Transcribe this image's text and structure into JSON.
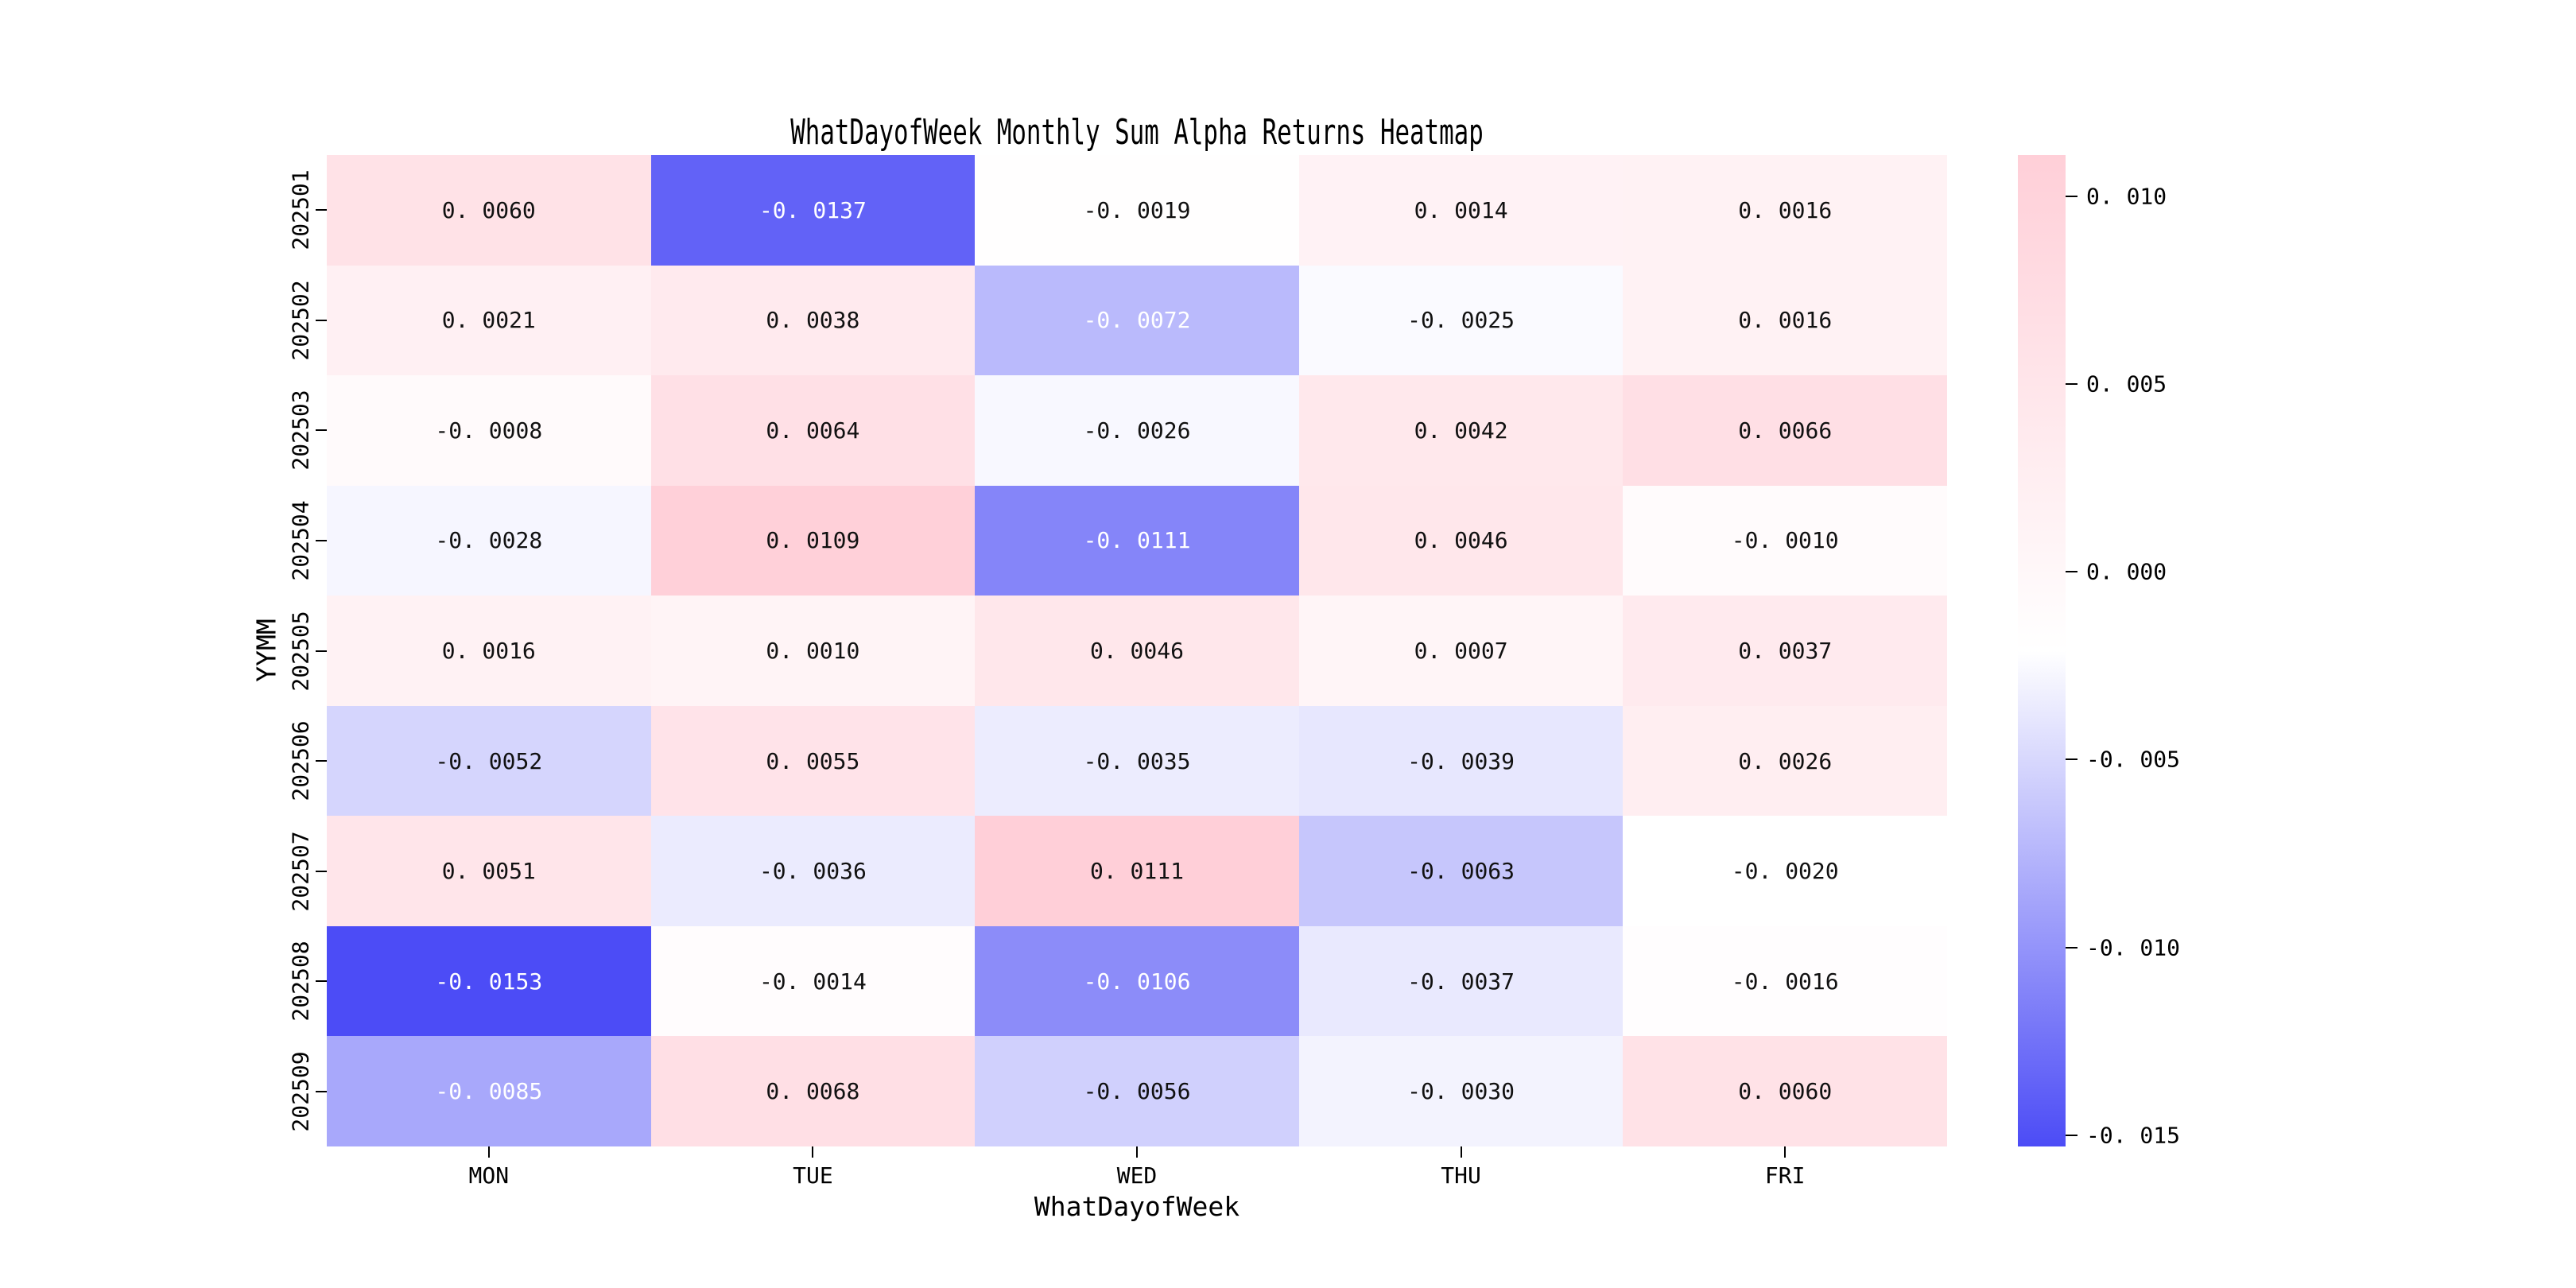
{
  "title": "WhatDayofWeek Monthly Sum Alpha Returns Heatmap",
  "chart_data": {
    "type": "heatmap",
    "title": "WhatDayofWeek Monthly Sum Alpha Returns Heatmap",
    "xlabel": "WhatDayofWeek",
    "ylabel": "YYMM",
    "x_categories": [
      "MON",
      "TUE",
      "WED",
      "THU",
      "FRI"
    ],
    "y_categories": [
      "202501",
      "202502",
      "202503",
      "202504",
      "202505",
      "202506",
      "202507",
      "202508",
      "202509"
    ],
    "values": [
      [
        0.006,
        -0.0137,
        -0.0019,
        0.0014,
        0.0016
      ],
      [
        0.0021,
        0.0038,
        -0.0072,
        -0.0025,
        0.0016
      ],
      [
        -0.0008,
        0.0064,
        -0.0026,
        0.0042,
        0.0066
      ],
      [
        -0.0028,
        0.0109,
        -0.0111,
        0.0046,
        -0.001
      ],
      [
        0.0016,
        0.001,
        0.0046,
        0.0007,
        0.0037
      ],
      [
        -0.0052,
        0.0055,
        -0.0035,
        -0.0039,
        0.0026
      ],
      [
        0.0051,
        -0.0036,
        0.0111,
        -0.0063,
        -0.002
      ],
      [
        -0.0153,
        -0.0014,
        -0.0106,
        -0.0037,
        -0.0016
      ],
      [
        -0.0085,
        0.0068,
        -0.0056,
        -0.003,
        0.006
      ]
    ],
    "cell_labels": [
      [
        "0. 0060",
        "-0. 0137",
        "-0. 0019",
        "0. 0014",
        "0. 0016"
      ],
      [
        "0. 0021",
        "0. 0038",
        "-0. 0072",
        "-0. 0025",
        "0. 0016"
      ],
      [
        "-0. 0008",
        "0. 0064",
        "-0. 0026",
        "0. 0042",
        "0. 0066"
      ],
      [
        "-0. 0028",
        "0. 0109",
        "-0. 0111",
        "0. 0046",
        "-0. 0010"
      ],
      [
        "0. 0016",
        "0. 0010",
        "0. 0046",
        "0. 0007",
        "0. 0037"
      ],
      [
        "-0. 0052",
        "0. 0055",
        "-0. 0035",
        "-0. 0039",
        "0. 0026"
      ],
      [
        "0. 0051",
        "-0. 0036",
        "0. 0111",
        "-0. 0063",
        "-0. 0020"
      ],
      [
        "-0. 0153",
        "-0. 0014",
        "-0. 0106",
        "-0. 0037",
        "-0. 0016"
      ],
      [
        "-0. 0085",
        "0. 0068",
        "-0. 0056",
        "-0. 0030",
        "0. 0060"
      ]
    ],
    "vmin": -0.0153,
    "vmax": 0.0111,
    "colormap": {
      "min_color": "#4C4CF6",
      "mid_color": "#FFFFFF",
      "max_color": "#FFCFD8"
    },
    "annot_white_text_threshold": -0.007,
    "annot_dark_color": "#111111",
    "annot_light_color": "#FFFFFF",
    "colorbar_ticks": [
      {
        "label": "0. 010",
        "value": 0.01
      },
      {
        "label": "0. 005",
        "value": 0.005
      },
      {
        "label": "0. 000",
        "value": 0.0
      },
      {
        "label": "-0. 005",
        "value": -0.005
      },
      {
        "label": "-0. 010",
        "value": -0.01
      },
      {
        "label": "-0. 015",
        "value": -0.015
      }
    ],
    "colorbar_position": "right",
    "grid_lines": false,
    "background": "#FFFFFF"
  }
}
